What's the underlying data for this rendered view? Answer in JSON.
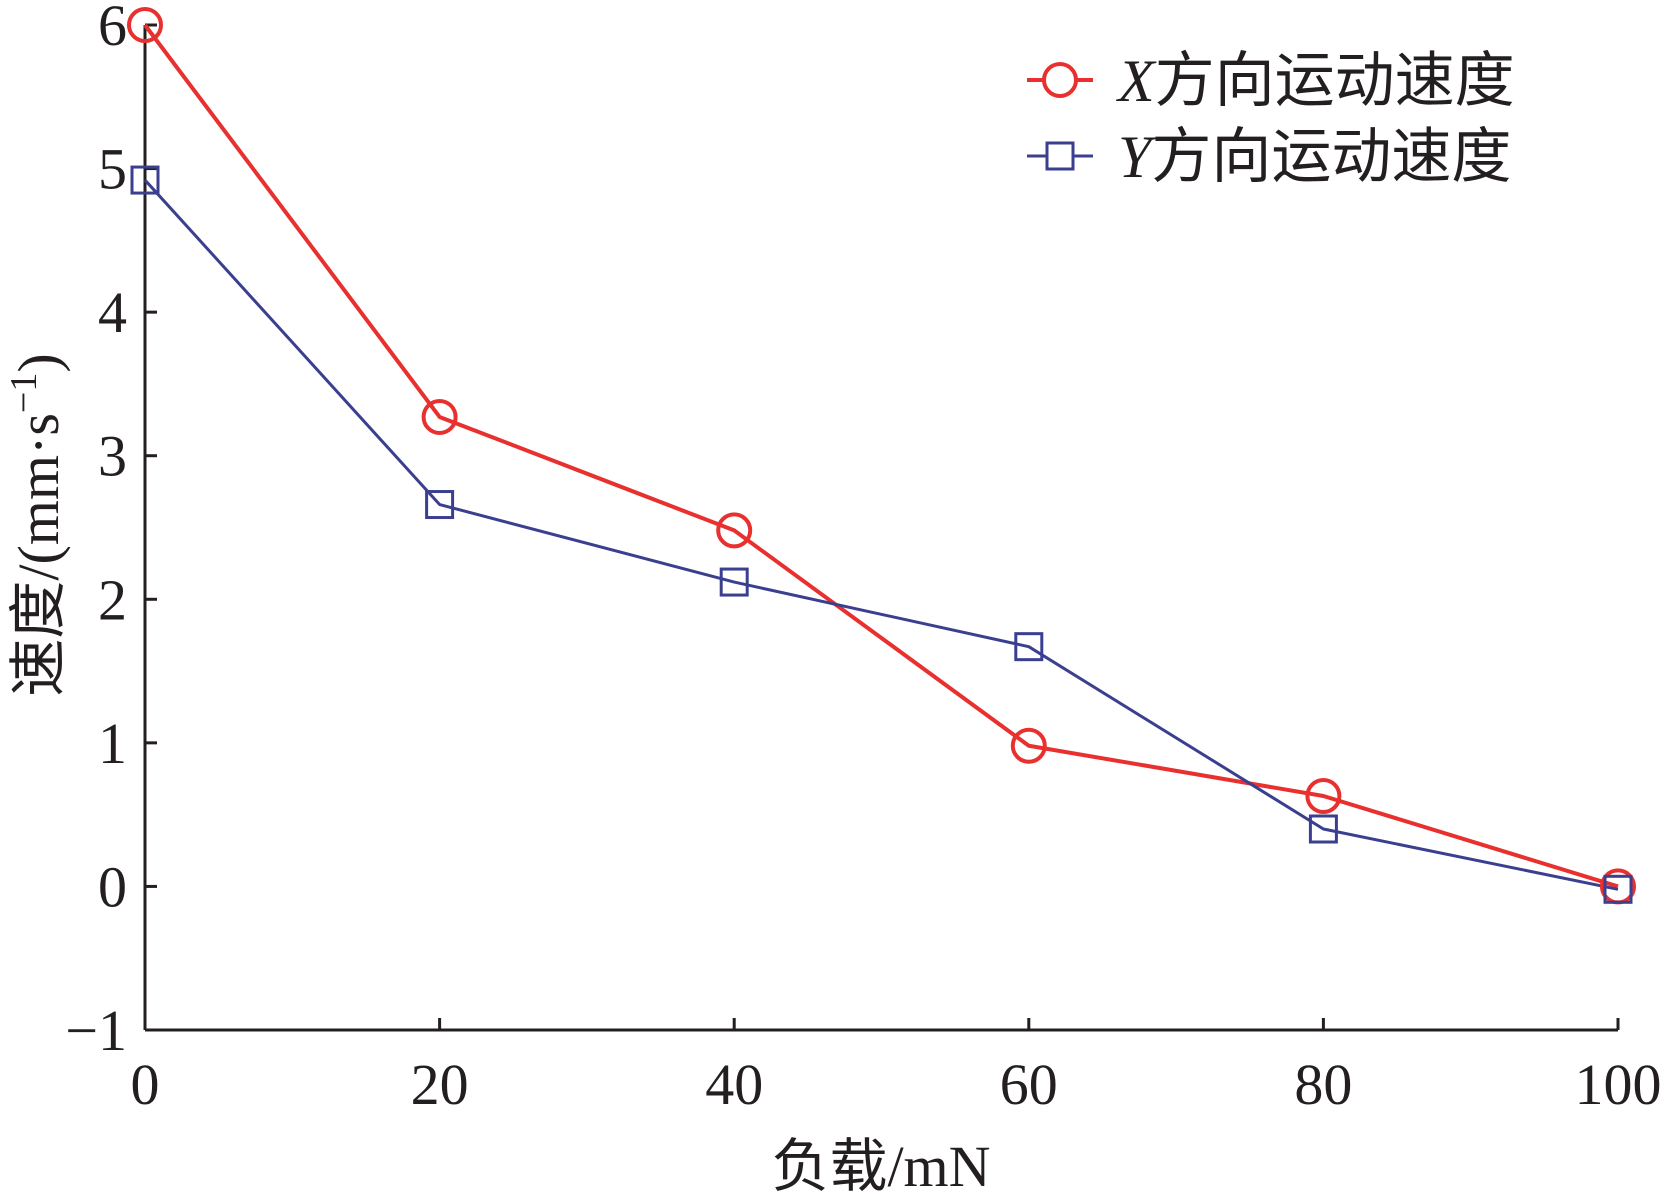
{
  "chart_data": {
    "type": "line",
    "xlabel": "负载/mN",
    "ylabel_main": "速度/(mm·s",
    "ylabel_sup": "−1",
    "ylabel_close": ")",
    "xlim": [
      0,
      100
    ],
    "ylim": [
      -1,
      6
    ],
    "xticks": [
      0,
      20,
      40,
      60,
      80,
      100
    ],
    "yticks": [
      -1,
      0,
      1,
      2,
      3,
      4,
      5,
      6
    ],
    "xtick_labels": [
      "0",
      "20",
      "40",
      "60",
      "80",
      "100"
    ],
    "ytick_labels": [
      "−1",
      "0",
      "1",
      "2",
      "3",
      "4",
      "5",
      "6"
    ],
    "grid": false,
    "legend_position": "top-right",
    "x": [
      0,
      20,
      40,
      60,
      80,
      100
    ],
    "series": [
      {
        "name": "X方向运动速度",
        "name_var": "X",
        "name_text": "方向运动速度",
        "marker": "circle",
        "color": "#e8312f",
        "values": [
          6.0,
          3.27,
          2.48,
          0.98,
          0.63,
          0.0
        ]
      },
      {
        "name": "Y方向运动速度",
        "name_var": "Y",
        "name_text": "方向运动速度",
        "marker": "square",
        "color": "#3b3f8f",
        "values": [
          4.92,
          2.66,
          2.12,
          1.67,
          0.4,
          -0.02
        ]
      }
    ]
  }
}
